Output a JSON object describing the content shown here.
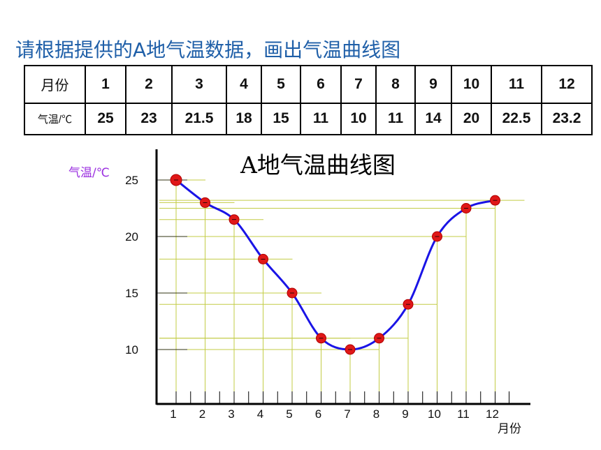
{
  "heading": "请根据提供的A地气温数据，画出气温曲线图",
  "table": {
    "row1_label": "月份",
    "row2_label": "气温/℃",
    "months": [
      "1",
      "2",
      "3",
      "4",
      "5",
      "6",
      "7",
      "8",
      "9",
      "10",
      "11",
      "12"
    ],
    "temps": [
      "25",
      "23",
      "21.5",
      "18",
      "15",
      "11",
      "10",
      "11",
      "14",
      "20",
      "22.5",
      "23.2"
    ]
  },
  "chart_data": {
    "type": "line",
    "title": "A地气温曲线图",
    "xlabel": "月份",
    "ylabel": "气温/℃",
    "categories": [
      "1",
      "2",
      "3",
      "4",
      "5",
      "6",
      "7",
      "8",
      "9",
      "10",
      "11",
      "12"
    ],
    "series": [
      {
        "values": [
          25,
          23,
          21.5,
          18,
          15,
          11,
          10,
          11,
          14,
          20,
          22.5,
          23.2
        ]
      }
    ],
    "y_ticks": [
      10,
      15,
      20,
      25
    ],
    "ylim": [
      5.5,
      27
    ],
    "grid": "guide lines from each point to axes",
    "colors": {
      "line": "#1a14e6",
      "marker": "#e01818",
      "guide": "#c3cc46",
      "ylabel": "#9b30e0"
    }
  }
}
